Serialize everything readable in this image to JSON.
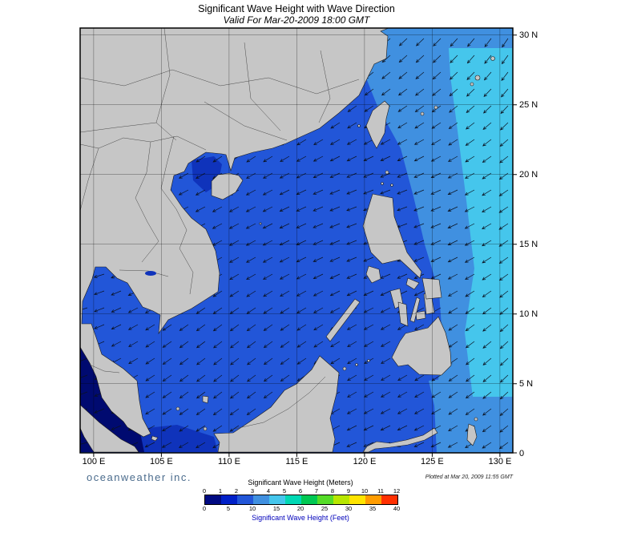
{
  "header": {
    "title": "Significant Wave Height with Wave Direction",
    "subtitle": "Valid For Mar-20-2009 18:00 GMT"
  },
  "map": {
    "lon_ticks": [
      "100 E",
      "105 E",
      "110 E",
      "115 E",
      "120 E",
      "125 E",
      "130 E"
    ],
    "lat_ticks": [
      "30 N",
      "25 N",
      "20 N",
      "15 N",
      "10 N",
      "5 N",
      "0"
    ]
  },
  "legend": {
    "meters_label": "Significant Wave Height (Meters)",
    "feet_label": "Significant Wave Height (Feet)",
    "meters_ticks": [
      "0",
      "1",
      "2",
      "3",
      "4",
      "5",
      "6",
      "7",
      "8",
      "9",
      "10",
      "11",
      "12"
    ],
    "feet_ticks": [
      "0",
      "5",
      "10",
      "15",
      "20",
      "25",
      "30",
      "35",
      "40"
    ],
    "colors": [
      "#000a82",
      "#0020c8",
      "#2256d8",
      "#4090e0",
      "#45c6ec",
      "#00d8b4",
      "#00c853",
      "#55dc28",
      "#b8e600",
      "#ffe400",
      "#ff9c00",
      "#ff3000"
    ]
  },
  "footer": {
    "brand": "oceanweather inc.",
    "plotted_at": "Plotted at Mar 20, 2009 11:55 GMT"
  },
  "colors": {
    "sea_base": "#2256d8",
    "sea_light": "#4090e0",
    "sea_cyan": "#45c6ec",
    "sea_dark": "#0f33bb",
    "sea_navy": "#000a70",
    "land": "#c6c6c6",
    "land_border": "#1c1c1c",
    "arrow": "#0b1220",
    "grid": "#000000",
    "frame": "#000000",
    "brand_text": "#4a6b8c",
    "feet_label_color": "#0000bb"
  }
}
